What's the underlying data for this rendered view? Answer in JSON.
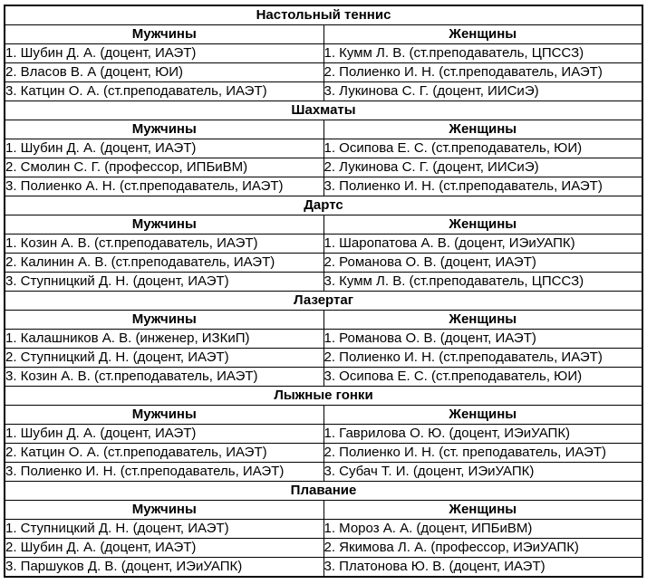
{
  "table": {
    "men_header": "Мужчины",
    "women_header": "Женщины",
    "sections": [
      {
        "sport": "Настольный теннис",
        "men": [
          "1. Шубин Д. А. (доцент, ИАЭТ)",
          "2. Власов В. А (доцент, ЮИ)",
          "3. Катцин О. А. (ст.преподаватель, ИАЭТ)"
        ],
        "women": [
          "1. Кумм Л. В. (ст.преподаватель, ЦПССЗ)",
          "2. Полиенко И. Н. (ст.преподаватель, ИАЭТ)",
          "3. Лукинова С. Г. (доцент, ИИСиЭ)"
        ]
      },
      {
        "sport": "Шахматы",
        "men": [
          "1. Шубин Д. А. (доцент, ИАЭТ)",
          "2. Смолин С. Г. (профессор, ИПБиВМ)",
          "3. Полиенко А. Н. (ст.преподаватель, ИАЭТ)"
        ],
        "women": [
          "1. Осипова Е. С. (ст.преподаватель, ЮИ)",
          "2. Лукинова С. Г. (доцент, ИИСиЭ)",
          "3. Полиенко И. Н. (ст.преподаватель, ИАЭТ)"
        ]
      },
      {
        "sport": "Дартс",
        "men": [
          "1. Козин А. В. (ст.преподаватель, ИАЭТ)",
          "2. Калинин А. В. (ст.преподаватель, ИАЭТ)",
          "3. Ступницкий Д. Н. (доцент, ИАЭТ)"
        ],
        "women": [
          "1. Шаропатова А. В. (доцент, ИЭиУАПК)",
          "2. Романова О. В. (доцент, ИАЭТ)",
          "3. Кумм Л. В. (ст.преподаватель, ЦПССЗ)"
        ]
      },
      {
        "sport": "Лазертаг",
        "men": [
          "1. Калашников А. В. (инженер, ИЗКиП)",
          "2. Ступницкий Д. Н. (доцент, ИАЭТ)",
          "3. Козин А. В. (ст.преподаватель, ИАЭТ)"
        ],
        "women": [
          "1. Романова О. В. (доцент, ИАЭТ)",
          "2. Полиенко И. Н. (ст.преподаватель, ИАЭТ)",
          "3. Осипова Е. С. (ст.преподаватель, ЮИ)"
        ]
      },
      {
        "sport": "Лыжные гонки",
        "men": [
          "1. Шубин Д. А. (доцент, ИАЭТ)",
          "2. Катцин О. А. (ст.преподаватель, ИАЭТ)",
          "3. Полиенко И. Н. (ст.преподаватель, ИАЭТ)"
        ],
        "women": [
          "1. Гаврилова О. Ю. (доцент, ИЭиУАПК)",
          "2. Полиенко И. Н. (ст. преподаватель, ИАЭТ)",
          "3. Субач Т. И. (доцент, ИЭиУАПК)"
        ]
      },
      {
        "sport": "Плавание",
        "men": [
          "1. Ступницкий Д. Н. (доцент, ИАЭТ)",
          "2. Шубин Д. А. (доцент, ИАЭТ)",
          "3. Паршуков Д. В. (доцент, ИЭиУАПК)"
        ],
        "women": [
          "1. Мороз А. А. (доцент, ИПБиВМ)",
          "2. Якимова Л. А. (профессор, ИЭиУАПК)",
          "3. Платонова Ю. В. (доцент, ИАЭТ)"
        ]
      }
    ]
  },
  "colors": {
    "border": "#000000",
    "text": "#000000",
    "background": "#ffffff"
  }
}
